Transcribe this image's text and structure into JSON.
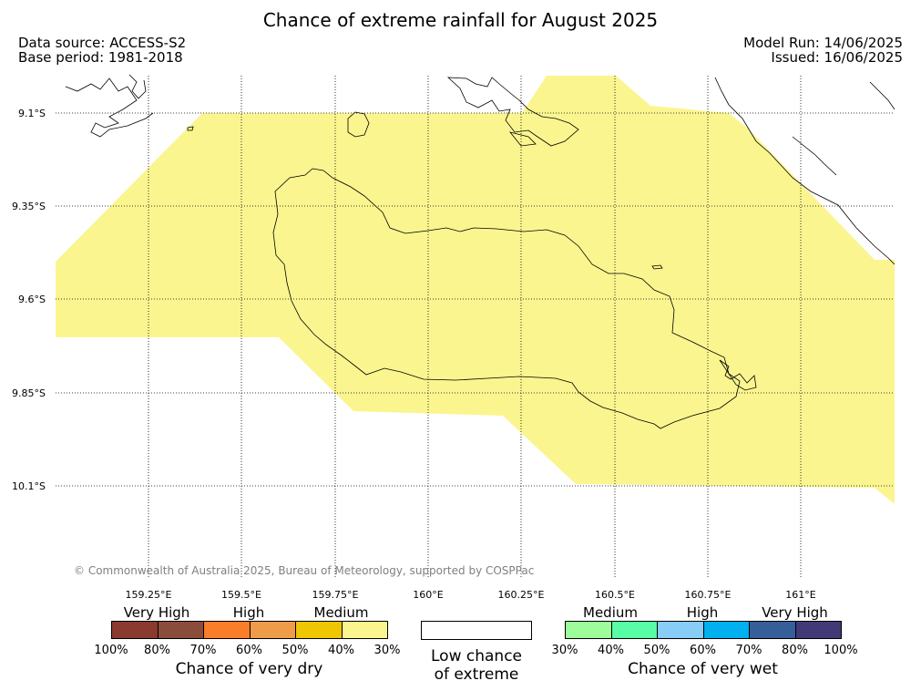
{
  "title": "Chance of extreme rainfall for August 2025",
  "data_source": "Data source: ACCESS-S2",
  "base_period": "Base period: 1981-2018",
  "model_run": "Model Run: 14/06/2025",
  "issued": "Issued: 16/06/2025",
  "copyright": "© Commonwealth of Australia 2025, Bureau of Meteorology, supported by COSPPac",
  "lat_ticks": [
    "9.1°S",
    "9.35°S",
    "9.6°S",
    "9.85°S",
    "10.1°S"
  ],
  "lon_ticks": [
    "159.25°E",
    "159.5°E",
    "159.75°E",
    "160°E",
    "160.25°E",
    "160.5°E",
    "160.75°E",
    "161°E"
  ],
  "probability_field": {
    "category": "Chance of very dry",
    "range": "30%–40%",
    "color": "#fbf58f"
  },
  "legend": {
    "dry": {
      "title": "Chance of very dry",
      "categories": [
        "Very High",
        "High",
        "Medium"
      ],
      "colors": [
        "#8b3a30",
        "#8b4d3b",
        "#fa7e29",
        "#ef9c4a",
        "#efc602",
        "#fbf58f"
      ],
      "ticks": [
        "100%",
        "80%",
        "70%",
        "60%",
        "50%",
        "40%",
        "30%"
      ]
    },
    "neutral": {
      "title_line1": "Low chance",
      "title_line2": "of extreme",
      "color": "#ffffff"
    },
    "wet": {
      "title": "Chance of very wet",
      "categories": [
        "Medium",
        "High",
        "Very High"
      ],
      "colors": [
        "#9dfd9b",
        "#58fea6",
        "#88cdf8",
        "#00b0ef",
        "#365f9a",
        "#423a77"
      ],
      "ticks": [
        "30%",
        "40%",
        "50%",
        "60%",
        "70%",
        "80%",
        "100%"
      ]
    }
  }
}
